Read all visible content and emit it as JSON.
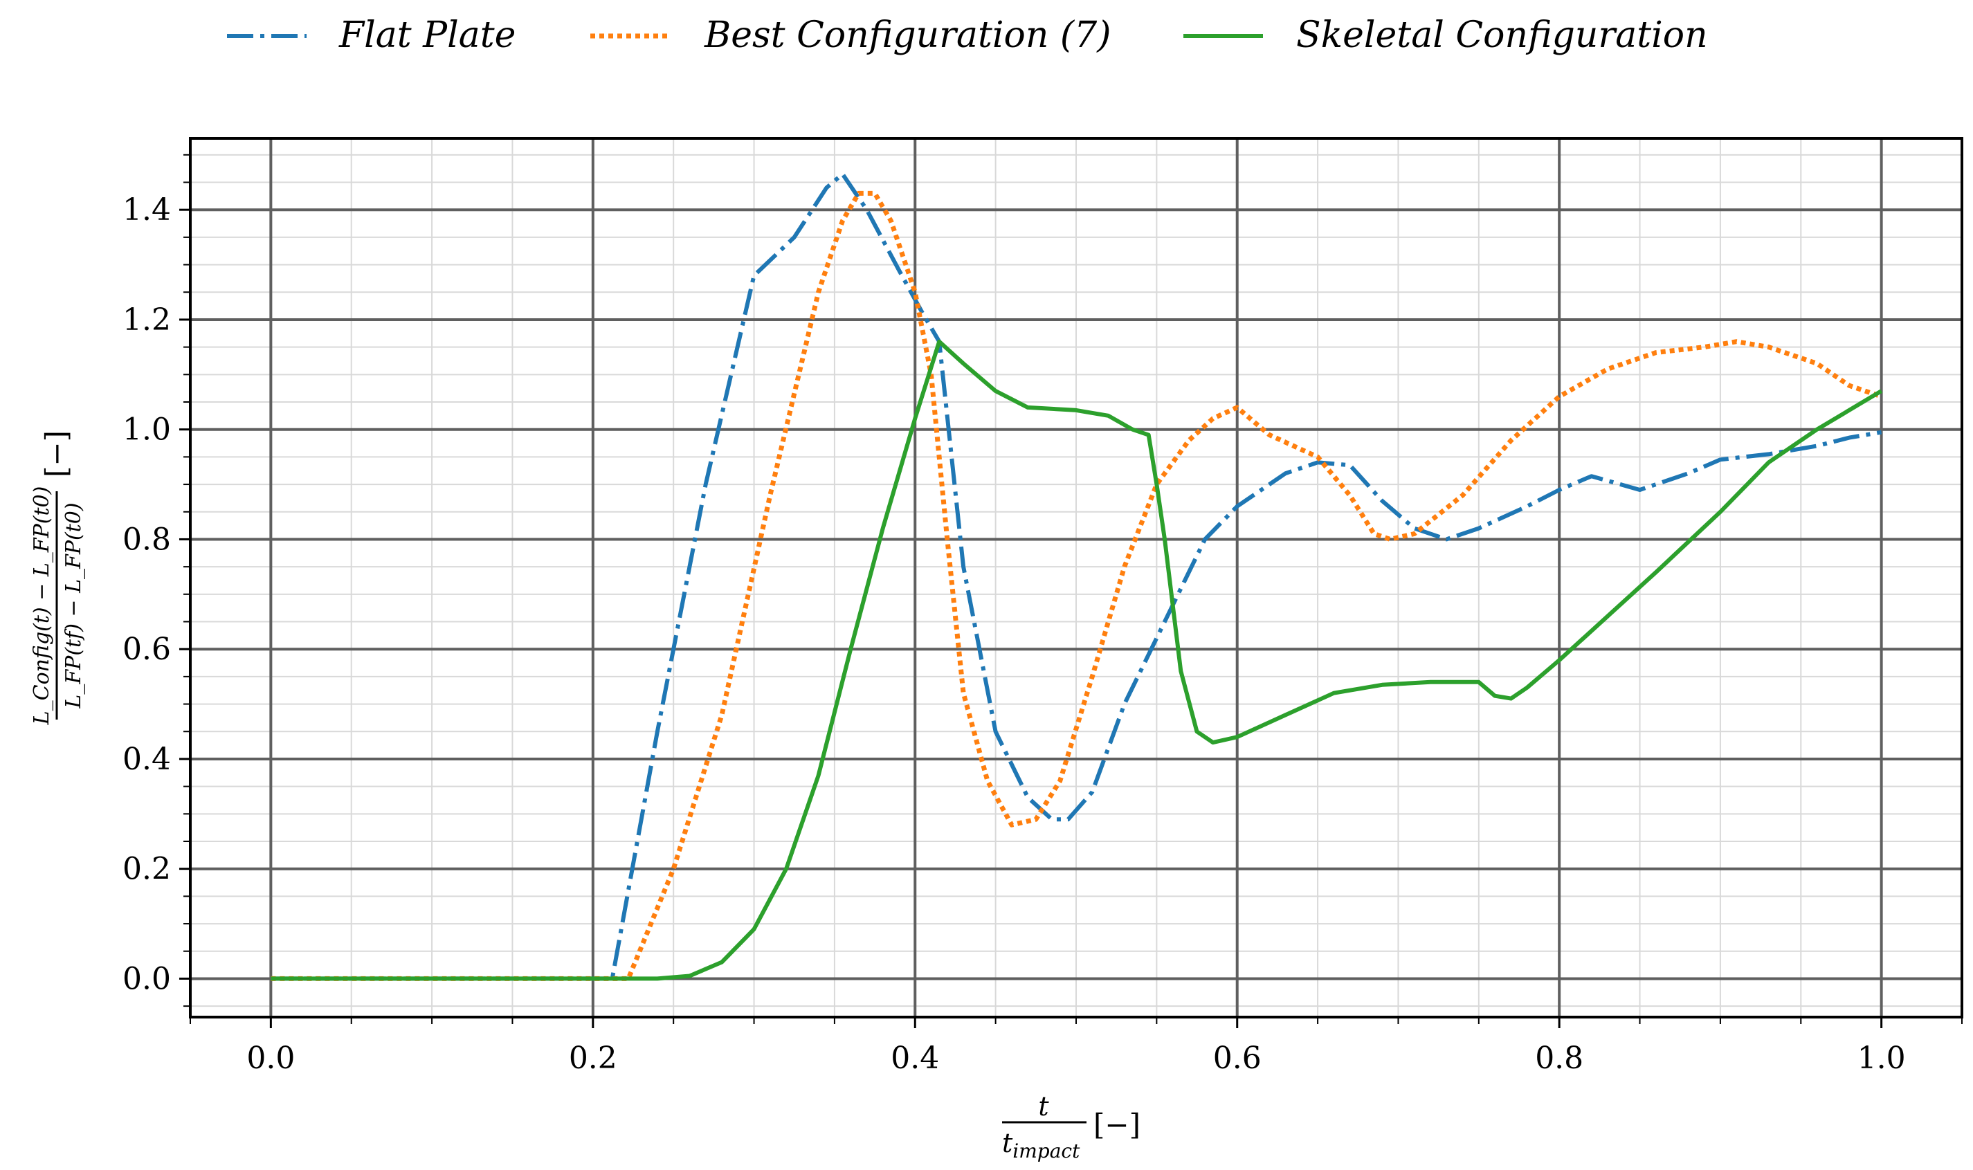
{
  "chart_data": {
    "type": "line",
    "title": "",
    "xlabel": {
      "numerator": "t",
      "denominator": "t_impact",
      "denominator_base": "t",
      "denominator_sub": "impact",
      "unit": "[−]"
    },
    "ylabel": {
      "numerator": "L_Config(t) − L_FP(t0)",
      "denominator": "L_FP(tf) − L_FP(t0)",
      "unit": "[−]"
    },
    "xlim": [
      -0.05,
      1.05
    ],
    "ylim": [
      -0.07,
      1.53
    ],
    "xticks": [
      0.0,
      0.2,
      0.4,
      0.6,
      0.8,
      1.0
    ],
    "xtick_labels": [
      "0.0",
      "0.2",
      "0.4",
      "0.6",
      "0.8",
      "1.0"
    ],
    "yticks": [
      0.0,
      0.2,
      0.4,
      0.6,
      0.8,
      1.0,
      1.2,
      1.4
    ],
    "ytick_labels": [
      "0.0",
      "0.2",
      "0.4",
      "0.6",
      "0.8",
      "1.0",
      "1.2",
      "1.4"
    ],
    "grid": true,
    "legend_position": "top",
    "series": [
      {
        "name": "Flat Plate",
        "color": "#1f77b4",
        "dash": "dashdot",
        "x": [
          0.0,
          0.1,
          0.2,
          0.212,
          0.24,
          0.27,
          0.3,
          0.325,
          0.345,
          0.355,
          0.37,
          0.39,
          0.405,
          0.415,
          0.43,
          0.45,
          0.47,
          0.485,
          0.495,
          0.51,
          0.53,
          0.56,
          0.58,
          0.6,
          0.63,
          0.65,
          0.67,
          0.69,
          0.71,
          0.73,
          0.75,
          0.78,
          0.8,
          0.82,
          0.85,
          0.88,
          0.9,
          0.93,
          0.96,
          0.98,
          1.0
        ],
        "values": [
          0.0,
          0.0,
          0.0,
          0.0,
          0.45,
          0.9,
          1.28,
          1.35,
          1.44,
          1.465,
          1.4,
          1.29,
          1.21,
          1.16,
          0.75,
          0.45,
          0.33,
          0.29,
          0.29,
          0.34,
          0.5,
          0.68,
          0.8,
          0.86,
          0.92,
          0.94,
          0.935,
          0.87,
          0.82,
          0.8,
          0.82,
          0.86,
          0.89,
          0.915,
          0.89,
          0.92,
          0.945,
          0.955,
          0.97,
          0.985,
          0.995
        ]
      },
      {
        "name": "Best Configuration (7)",
        "color": "#ff7f0e",
        "dash": "dotted",
        "x": [
          0.0,
          0.1,
          0.2,
          0.222,
          0.25,
          0.28,
          0.31,
          0.34,
          0.355,
          0.365,
          0.375,
          0.385,
          0.4,
          0.41,
          0.42,
          0.43,
          0.445,
          0.46,
          0.475,
          0.49,
          0.51,
          0.53,
          0.55,
          0.57,
          0.585,
          0.6,
          0.62,
          0.65,
          0.67,
          0.685,
          0.695,
          0.71,
          0.74,
          0.77,
          0.8,
          0.83,
          0.86,
          0.89,
          0.91,
          0.93,
          0.96,
          0.98,
          1.0
        ],
        "values": [
          0.0,
          0.0,
          0.0,
          0.0,
          0.2,
          0.48,
          0.88,
          1.25,
          1.38,
          1.43,
          1.43,
          1.38,
          1.25,
          1.1,
          0.8,
          0.52,
          0.36,
          0.28,
          0.29,
          0.36,
          0.55,
          0.75,
          0.9,
          0.98,
          1.02,
          1.04,
          0.99,
          0.95,
          0.88,
          0.81,
          0.8,
          0.81,
          0.88,
          0.98,
          1.06,
          1.11,
          1.14,
          1.15,
          1.16,
          1.15,
          1.12,
          1.08,
          1.06
        ]
      },
      {
        "name": "Skeletal Configuration",
        "color": "#2ca02c",
        "dash": "solid",
        "x": [
          0.0,
          0.1,
          0.2,
          0.24,
          0.26,
          0.28,
          0.3,
          0.32,
          0.34,
          0.36,
          0.38,
          0.4,
          0.415,
          0.43,
          0.45,
          0.47,
          0.5,
          0.52,
          0.535,
          0.545,
          0.55,
          0.555,
          0.565,
          0.575,
          0.585,
          0.6,
          0.63,
          0.66,
          0.69,
          0.72,
          0.75,
          0.76,
          0.77,
          0.78,
          0.8,
          0.83,
          0.86,
          0.9,
          0.93,
          0.96,
          1.0
        ],
        "values": [
          0.0,
          0.0,
          0.0,
          0.0,
          0.005,
          0.03,
          0.09,
          0.2,
          0.37,
          0.6,
          0.82,
          1.02,
          1.16,
          1.12,
          1.07,
          1.04,
          1.035,
          1.025,
          1.0,
          0.99,
          0.9,
          0.8,
          0.56,
          0.45,
          0.43,
          0.44,
          0.48,
          0.52,
          0.535,
          0.54,
          0.54,
          0.515,
          0.51,
          0.53,
          0.58,
          0.66,
          0.74,
          0.85,
          0.94,
          1.0,
          1.07
        ]
      }
    ]
  }
}
